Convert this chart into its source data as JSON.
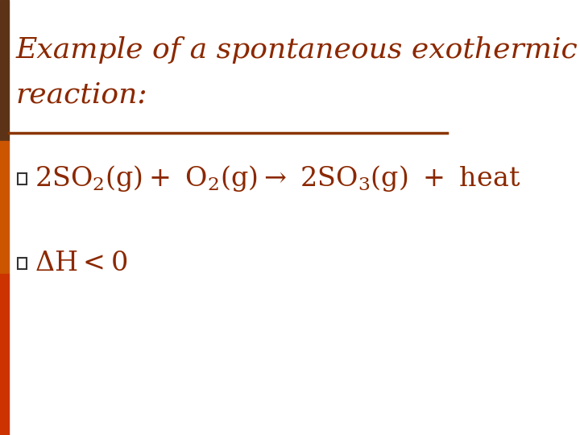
{
  "title_line1": "Example of a spontaneous exothermic",
  "title_line2": "reaction:",
  "title_color": "#8B2800",
  "separator_color": "#8B3500",
  "bg_color": "#FFFFFF",
  "bar_color_top": "#5C3317",
  "bar_color_mid": "#CC5500",
  "bar_color_bot": "#CC3300",
  "bullet_color": "#333333",
  "font_size_title": 26,
  "font_size_bullet": 24,
  "figwidth": 7.2,
  "figheight": 5.4,
  "dpi": 100
}
